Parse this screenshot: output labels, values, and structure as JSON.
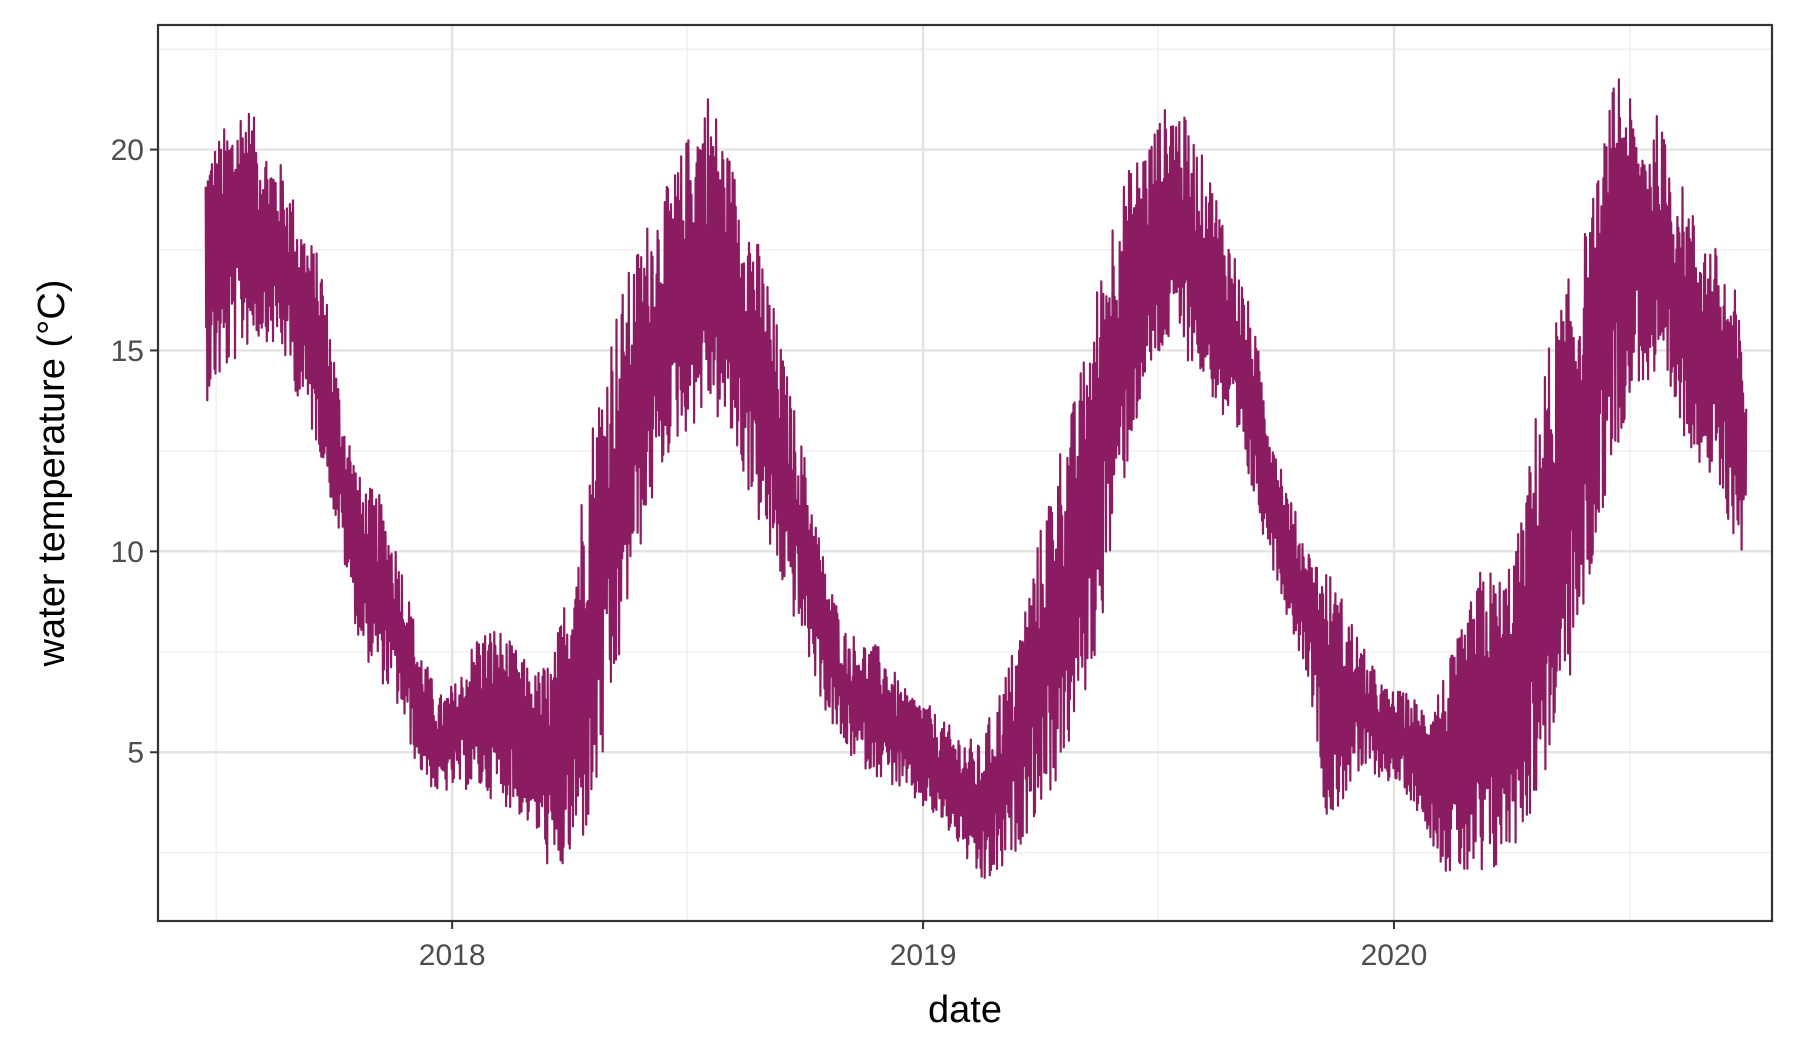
{
  "chart_data": {
    "type": "line",
    "title": "",
    "xlabel": "date",
    "ylabel": "water temperature (°C)",
    "xlim": [
      "2017-05-18",
      "2020-10-20"
    ],
    "ylim": [
      0.8,
      23.1
    ],
    "x_ticks": [
      {
        "value": "2018-01-01",
        "label": "2018"
      },
      {
        "value": "2019-01-01",
        "label": "2019"
      },
      {
        "value": "2020-01-01",
        "label": "2020"
      }
    ],
    "x_minor_ticks": [
      "2017-07-02",
      "2018-07-02",
      "2019-07-02",
      "2020-07-02"
    ],
    "y_ticks": [
      5,
      10,
      15,
      20
    ],
    "y_minor_ticks": [
      2.5,
      7.5,
      12.5,
      17.5,
      22.5
    ],
    "grid": true,
    "series": [
      {
        "color": "#8B1C62",
        "x": [
          "2017-06-24",
          "2017-07-09",
          "2017-07-24",
          "2017-08-08",
          "2017-08-23",
          "2017-09-07",
          "2017-09-22",
          "2017-10-07",
          "2017-10-22",
          "2017-11-06",
          "2017-11-21",
          "2017-12-06",
          "2017-12-21",
          "2018-01-05",
          "2018-01-20",
          "2018-02-04",
          "2018-02-19",
          "2018-03-06",
          "2018-03-21",
          "2018-04-05",
          "2018-04-20",
          "2018-05-05",
          "2018-05-20",
          "2018-06-04",
          "2018-06-19",
          "2018-07-04",
          "2018-07-19",
          "2018-08-03",
          "2018-08-18",
          "2018-09-02",
          "2018-09-17",
          "2018-10-02",
          "2018-10-17",
          "2018-11-01",
          "2018-11-16",
          "2018-12-01",
          "2018-12-16",
          "2018-12-31",
          "2019-01-15",
          "2019-01-30",
          "2019-02-14",
          "2019-03-01",
          "2019-03-16",
          "2019-03-31",
          "2019-04-15",
          "2019-04-30",
          "2019-05-15",
          "2019-05-30",
          "2019-06-14",
          "2019-06-29",
          "2019-07-14",
          "2019-07-29",
          "2019-08-13",
          "2019-08-28",
          "2019-09-12",
          "2019-09-27",
          "2019-10-12",
          "2019-10-27",
          "2019-11-11",
          "2019-11-26",
          "2019-12-11",
          "2019-12-26",
          "2020-01-10",
          "2020-01-25",
          "2020-02-09",
          "2020-02-24",
          "2020-03-10",
          "2020-03-25",
          "2020-04-09",
          "2020-04-24",
          "2020-05-09",
          "2020-05-24",
          "2020-06-08",
          "2020-06-23",
          "2020-07-08",
          "2020-07-23",
          "2020-08-07",
          "2020-08-22",
          "2020-09-06",
          "2020-09-21",
          "2020-09-30"
        ],
        "min": [
          13.7,
          14.3,
          15.0,
          15.3,
          14.8,
          13.5,
          12.3,
          10.0,
          7.5,
          6.8,
          6.0,
          4.5,
          3.9,
          4.1,
          4.0,
          3.8,
          3.5,
          3.0,
          1.7,
          2.2,
          3.2,
          5.8,
          9.2,
          11.0,
          12.5,
          13.0,
          13.5,
          12.8,
          11.5,
          10.0,
          8.8,
          7.5,
          6.0,
          5.0,
          4.6,
          4.3,
          4.0,
          3.6,
          3.2,
          2.6,
          1.6,
          1.8,
          2.6,
          3.5,
          4.2,
          5.6,
          7.3,
          10.5,
          13.0,
          14.5,
          15.2,
          14.6,
          13.8,
          12.6,
          11.5,
          9.8,
          8.2,
          6.8,
          3.0,
          4.0,
          4.5,
          4.3,
          4.0,
          3.2,
          2.0,
          1.8,
          1.3,
          2.2,
          2.9,
          4.0,
          5.8,
          7.7,
          10.5,
          12.7,
          14.2,
          13.8,
          13.1,
          12.4,
          11.4,
          10.3,
          9.6
        ],
        "max": [
          20.0,
          20.6,
          21.4,
          20.2,
          19.6,
          18.2,
          17.2,
          13.8,
          11.8,
          11.4,
          10.0,
          7.8,
          6.4,
          6.8,
          8.0,
          8.2,
          7.6,
          7.0,
          7.5,
          10.2,
          13.5,
          15.8,
          17.2,
          18.5,
          19.2,
          20.5,
          21.6,
          20.0,
          18.6,
          17.0,
          14.5,
          12.3,
          9.7,
          8.1,
          7.8,
          7.6,
          6.6,
          6.4,
          5.8,
          5.5,
          5.2,
          6.6,
          8.0,
          10.3,
          12.5,
          14.0,
          16.5,
          18.9,
          19.8,
          20.6,
          21.4,
          20.4,
          19.3,
          17.8,
          16.0,
          13.5,
          11.4,
          10.1,
          9.6,
          8.6,
          7.4,
          6.6,
          6.5,
          6.2,
          7.0,
          8.2,
          9.8,
          9.4,
          10.8,
          14.5,
          16.3,
          17.5,
          19.5,
          22.4,
          20.5,
          20.9,
          19.5,
          18.3,
          17.6,
          16.6,
          14.7
        ]
      }
    ]
  }
}
